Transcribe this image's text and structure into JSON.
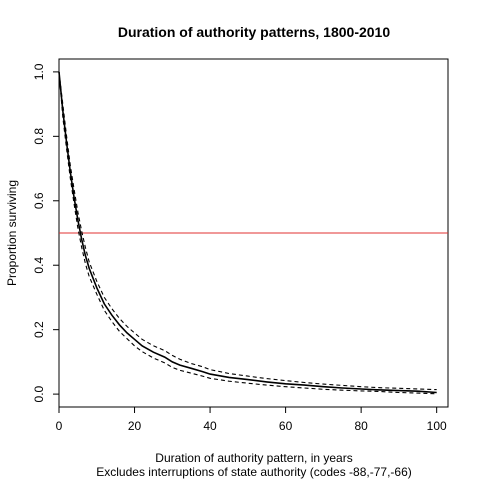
{
  "chart_data": {
    "type": "line",
    "title": "Duration of authority patterns, 1800-2010",
    "xlabel": "Duration of authority pattern, in years",
    "subtitle": "Excludes interruptions of state authority (codes -88,-77,-66)",
    "ylabel": "Proportion surviving",
    "xlim": [
      0,
      103
    ],
    "ylim": [
      -0.04,
      1.04
    ],
    "x_ticks": [
      0,
      20,
      40,
      60,
      80,
      100
    ],
    "x_tick_labels": [
      "0",
      "20",
      "40",
      "60",
      "80",
      "100"
    ],
    "y_ticks": [
      0.0,
      0.2,
      0.4,
      0.6,
      0.8,
      1.0
    ],
    "y_tick_labels": [
      "0.0",
      "0.2",
      "0.4",
      "0.6",
      "0.8",
      "1.0"
    ],
    "grid": false,
    "reference_line": {
      "y": 0.5,
      "color": "#e03030"
    },
    "series": [
      {
        "style": "solid",
        "color": "#000000",
        "x": [
          0,
          1,
          2,
          3,
          4,
          5,
          6,
          7,
          8,
          10,
          12,
          14,
          16,
          18,
          20,
          22,
          25,
          28,
          30,
          32,
          35,
          38,
          40,
          45,
          50,
          55,
          60,
          65,
          70,
          75,
          80,
          85,
          90,
          95,
          100
        ],
        "y": [
          1.0,
          0.88,
          0.78,
          0.69,
          0.61,
          0.54,
          0.48,
          0.43,
          0.39,
          0.33,
          0.28,
          0.245,
          0.215,
          0.19,
          0.17,
          0.15,
          0.13,
          0.115,
          0.1,
          0.09,
          0.08,
          0.07,
          0.062,
          0.052,
          0.045,
          0.038,
          0.032,
          0.028,
          0.023,
          0.019,
          0.016,
          0.013,
          0.011,
          0.009,
          0.005
        ]
      },
      {
        "style": "dashed",
        "color": "#000000",
        "x": [
          0,
          1,
          2,
          3,
          4,
          5,
          6,
          7,
          8,
          10,
          12,
          14,
          16,
          18,
          20,
          22,
          25,
          28,
          30,
          32,
          35,
          38,
          40,
          45,
          50,
          55,
          60,
          65,
          70,
          75,
          80,
          85,
          90,
          95,
          100
        ],
        "y": [
          1.0,
          0.9,
          0.8,
          0.71,
          0.635,
          0.565,
          0.505,
          0.455,
          0.41,
          0.35,
          0.3,
          0.265,
          0.235,
          0.21,
          0.19,
          0.17,
          0.15,
          0.135,
          0.12,
          0.108,
          0.095,
          0.085,
          0.076,
          0.064,
          0.056,
          0.048,
          0.042,
          0.036,
          0.031,
          0.027,
          0.023,
          0.02,
          0.018,
          0.016,
          0.014
        ]
      },
      {
        "style": "dashed",
        "color": "#000000",
        "x": [
          0,
          1,
          2,
          3,
          4,
          5,
          6,
          7,
          8,
          10,
          12,
          14,
          16,
          18,
          20,
          22,
          25,
          28,
          30,
          32,
          35,
          38,
          40,
          45,
          50,
          55,
          60,
          65,
          70,
          75,
          80,
          85,
          90,
          95,
          100
        ],
        "y": [
          1.0,
          0.86,
          0.76,
          0.67,
          0.59,
          0.515,
          0.455,
          0.405,
          0.365,
          0.31,
          0.26,
          0.225,
          0.195,
          0.172,
          0.15,
          0.132,
          0.112,
          0.097,
          0.083,
          0.074,
          0.065,
          0.056,
          0.049,
          0.04,
          0.034,
          0.028,
          0.023,
          0.019,
          0.015,
          0.012,
          0.01,
          0.008,
          0.005,
          0.003,
          0.001
        ]
      }
    ]
  }
}
